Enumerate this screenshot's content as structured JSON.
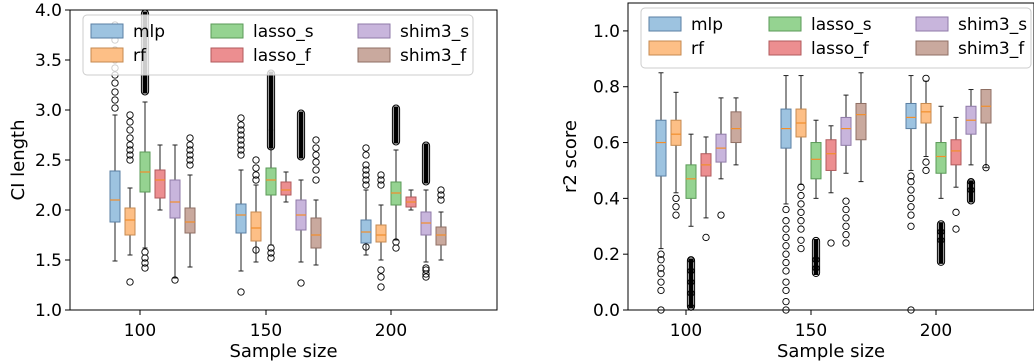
{
  "chart_data": [
    {
      "type": "boxplot",
      "xlabel": "Sample size",
      "ylabel": "CI length",
      "categories": [
        "100",
        "150",
        "200"
      ],
      "ylim": [
        1.0,
        4.0
      ],
      "yticks": [
        1.0,
        1.5,
        2.0,
        2.5,
        3.0,
        3.5,
        4.0
      ],
      "ytick_labels": [
        "1.0",
        "1.5",
        "2.0",
        "2.5",
        "3.0",
        "3.5",
        "4.0"
      ],
      "legend": {
        "placement": "top",
        "columns": 3
      },
      "series": [
        {
          "name": "mlp",
          "color": "#9dc3e0",
          "edge": "#5a7fa3",
          "boxes": [
            [
              1.49,
              1.88,
              2.1,
              2.39,
              2.95
            ],
            [
              1.39,
              1.77,
              1.95,
              2.06,
              2.4
            ],
            [
              1.55,
              1.67,
              1.78,
              1.9,
              2.2
            ]
          ],
          "outliers": [
            [
              3.85,
              3.7,
              3.6,
              3.5,
              3.42,
              3.35,
              3.27,
              3.18,
              3.1,
              3.02
            ],
            [
              1.18,
              2.55,
              2.6,
              2.65,
              2.7,
              2.75,
              2.8,
              2.85,
              2.92
            ],
            [
              1.63,
              2.25,
              2.3,
              2.35,
              2.4,
              2.45,
              2.55,
              2.62
            ]
          ]
        },
        {
          "name": "rf",
          "color": "#fdbf86",
          "edge": "#c58a50",
          "boxes": [
            [
              1.55,
              1.75,
              1.9,
              2.02,
              2.22
            ],
            [
              1.48,
              1.69,
              1.82,
              1.98,
              2.25
            ],
            [
              1.5,
              1.68,
              1.75,
              1.85,
              2.05
            ]
          ],
          "outliers": [
            [
              1.28,
              2.5,
              2.55,
              2.6,
              2.65,
              2.72,
              2.8,
              2.88,
              2.95
            ],
            [
              1.6,
              2.3,
              2.35,
              2.42,
              2.5
            ],
            [
              1.23,
              1.33,
              1.4,
              2.25,
              2.3,
              2.35
            ]
          ]
        },
        {
          "name": "lasso_s",
          "color": "#95d391",
          "edge": "#5a9a57",
          "boxes": [
            [
              1.62,
              2.18,
              2.38,
              2.58,
              3.08
            ],
            [
              1.65,
              2.15,
              2.3,
              2.42,
              2.8
            ],
            [
              1.7,
              2.05,
              2.17,
              2.28,
              2.6
            ]
          ],
          "outliers": [
            [
              1.42,
              1.47,
              1.52,
              1.58
            ],
            [
              1.52,
              1.57,
              1.62
            ],
            [
              1.62,
              1.68
            ]
          ]
        },
        {
          "name": "lasso_f",
          "color": "#ec8e90",
          "edge": "#b05a5c",
          "boxes": [
            [
              2.0,
              2.12,
              2.3,
              2.4,
              2.65
            ],
            [
              2.08,
              2.15,
              2.2,
              2.28,
              2.38
            ],
            [
              2.0,
              2.03,
              2.08,
              2.13,
              2.2
            ]
          ],
          "outliers": [
            [],
            [],
            []
          ]
        },
        {
          "name": "shim3_s",
          "color": "#c8b5dc",
          "edge": "#8f7aa8",
          "boxes": [
            [
              1.32,
              1.92,
              2.08,
              2.3,
              2.65
            ],
            [
              1.48,
              1.8,
              1.95,
              2.1,
              2.3
            ],
            [
              1.48,
              1.75,
              1.87,
              1.98,
              2.2
            ]
          ],
          "outliers": [
            [
              1.3
            ],
            [
              1.27
            ],
            [
              1.33,
              1.36,
              1.4,
              1.42
            ]
          ]
        },
        {
          "name": "shim3_f",
          "color": "#c9a99e",
          "edge": "#8f6f64",
          "boxes": [
            [
              1.43,
              1.77,
              1.88,
              2.02,
              2.35
            ],
            [
              1.45,
              1.62,
              1.75,
              1.92,
              2.1
            ],
            [
              1.5,
              1.65,
              1.75,
              1.83,
              1.98
            ]
          ],
          "outliers": [
            [
              2.45,
              2.5,
              2.55,
              2.6,
              2.65,
              2.72
            ],
            [
              2.3,
              2.4,
              2.48,
              2.55,
              2.62,
              2.7
            ],
            [
              2.1,
              2.15,
              2.2
            ]
          ]
        }
      ],
      "dense_outliers": [
        {
          "series": "lasso_s",
          "category": "100",
          "from": 3.15,
          "to": 4.0
        },
        {
          "series": "lasso_s",
          "category": "150",
          "from": 2.6,
          "to": 3.4
        },
        {
          "series": "lasso_s",
          "category": "200",
          "from": 2.65,
          "to": 3.05
        },
        {
          "series": "shim3_s",
          "category": "150",
          "from": 2.5,
          "to": 3.0
        },
        {
          "series": "shim3_s",
          "category": "200",
          "from": 2.25,
          "to": 2.68
        }
      ]
    },
    {
      "type": "boxplot",
      "xlabel": "Sample size",
      "ylabel": "r2 score",
      "categories": [
        "100",
        "150",
        "200"
      ],
      "ylim": [
        0.0,
        1.1
      ],
      "yticks": [
        0.0,
        0.2,
        0.4,
        0.6,
        0.8,
        1.0
      ],
      "ytick_labels": [
        "0.0",
        "0.2",
        "0.4",
        "0.6",
        "0.8",
        "1.0"
      ],
      "legend": {
        "placement": "top",
        "columns": 3
      },
      "series": [
        {
          "name": "mlp",
          "color": "#9dc3e0",
          "edge": "#5a7fa3",
          "boxes": [
            [
              0.22,
              0.48,
              0.6,
              0.68,
              0.85
            ],
            [
              0.38,
              0.58,
              0.65,
              0.72,
              0.84
            ],
            [
              0.5,
              0.65,
              0.69,
              0.74,
              0.84
            ]
          ],
          "outliers": [
            [
              0.0,
              0.07,
              0.1,
              0.13,
              0.15,
              0.18,
              0.2
            ],
            [
              0.0,
              0.03,
              0.07,
              0.1,
              0.14,
              0.17,
              0.2,
              0.23,
              0.26,
              0.29,
              0.32,
              0.36
            ],
            [
              0.0,
              0.3,
              0.34,
              0.37,
              0.4,
              0.43,
              0.46,
              0.48
            ]
          ]
        },
        {
          "name": "rf",
          "color": "#fdbf86",
          "edge": "#c58a50",
          "boxes": [
            [
              0.42,
              0.59,
              0.63,
              0.68,
              0.78
            ],
            [
              0.45,
              0.62,
              0.67,
              0.72,
              0.84
            ],
            [
              0.55,
              0.67,
              0.71,
              0.74,
              0.82
            ]
          ],
          "outliers": [
            [
              0.34,
              0.37,
              0.4
            ],
            [
              0.22,
              0.25,
              0.29,
              0.32,
              0.35,
              0.38,
              0.41,
              0.44
            ],
            [
              0.5,
              0.53,
              0.83
            ]
          ]
        },
        {
          "name": "lasso_s",
          "color": "#95d391",
          "edge": "#5a9a57",
          "boxes": [
            [
              0.3,
              0.4,
              0.47,
              0.52,
              0.63
            ],
            [
              0.4,
              0.47,
              0.54,
              0.6,
              0.68
            ],
            [
              0.4,
              0.49,
              0.55,
              0.6,
              0.73
            ]
          ],
          "outliers": [
            [
              0.01,
              0.06,
              0.1,
              0.14,
              0.18
            ],
            [
              0.15,
              0.18
            ],
            [
              0.25,
              0.28
            ]
          ]
        },
        {
          "name": "lasso_f",
          "color": "#ec8e90",
          "edge": "#b05a5c",
          "boxes": [
            [
              0.33,
              0.48,
              0.52,
              0.56,
              0.62
            ],
            [
              0.42,
              0.5,
              0.56,
              0.61,
              0.66
            ],
            [
              0.44,
              0.52,
              0.57,
              0.61,
              0.69
            ]
          ],
          "outliers": [
            [
              0.26
            ],
            [
              0.24
            ],
            [
              0.29,
              0.35
            ]
          ]
        },
        {
          "name": "shim3_s",
          "color": "#c8b5dc",
          "edge": "#8f7aa8",
          "boxes": [
            [
              0.47,
              0.53,
              0.58,
              0.63,
              0.76
            ],
            [
              0.49,
              0.59,
              0.65,
              0.69,
              0.77
            ],
            [
              0.52,
              0.63,
              0.68,
              0.73,
              0.79
            ]
          ],
          "outliers": [
            [
              0.34
            ],
            [
              0.24,
              0.27,
              0.3,
              0.33,
              0.36,
              0.39
            ],
            [
              0.43,
              0.46
            ]
          ]
        },
        {
          "name": "shim3_f",
          "color": "#c9a99e",
          "edge": "#8f6f64",
          "boxes": [
            [
              0.52,
              0.6,
              0.65,
              0.71,
              0.76
            ],
            [
              0.46,
              0.61,
              0.7,
              0.74,
              0.85
            ],
            [
              0.51,
              0.67,
              0.73,
              0.79,
              0.79
            ]
          ],
          "outliers": [
            [],
            [],
            [
              0.51
            ]
          ]
        }
      ],
      "dense_outliers": [
        {
          "series": "lasso_s",
          "category": "100",
          "from": 0.0,
          "to": 0.19
        },
        {
          "series": "lasso_s",
          "category": "150",
          "from": 0.12,
          "to": 0.26
        },
        {
          "series": "lasso_s",
          "category": "200",
          "from": 0.16,
          "to": 0.32
        },
        {
          "series": "shim3_s",
          "category": "200",
          "from": 0.38,
          "to": 0.47
        }
      ]
    }
  ]
}
